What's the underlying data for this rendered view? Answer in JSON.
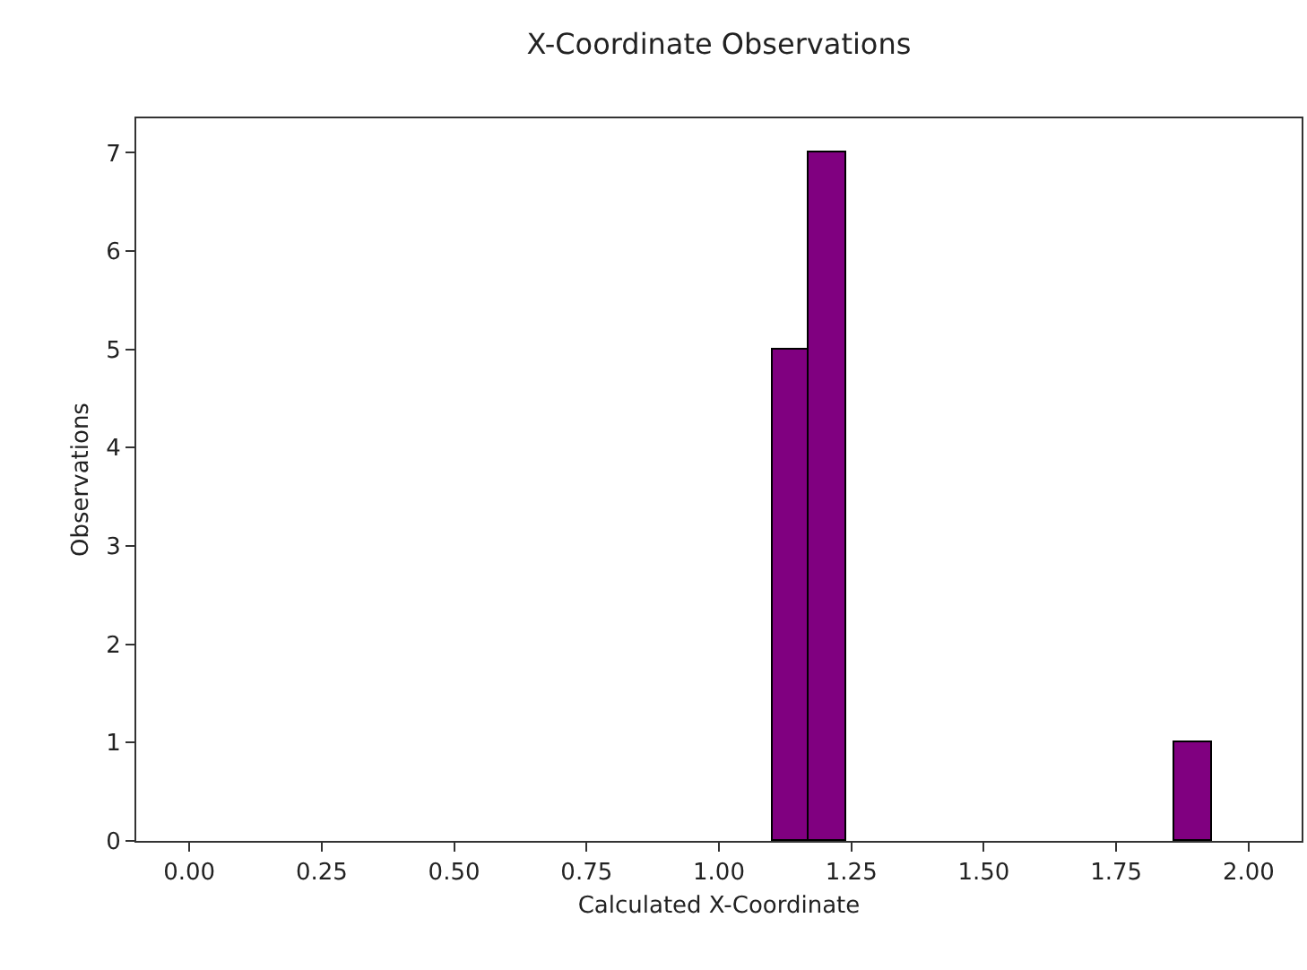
{
  "chart_data": {
    "type": "histogram",
    "title": "X-Coordinate Observations",
    "xlabel": "Calculated X-Coordinate",
    "ylabel": "Observations",
    "bins": [
      1.1,
      1.17,
      1.24,
      1.86,
      1.93
    ],
    "values": [
      5,
      7,
      0,
      1
    ],
    "color": "#800080",
    "xlim": [
      -0.1,
      2.1
    ],
    "xticks": [
      {
        "value": 0,
        "label": "0.00"
      },
      {
        "value": 0.25,
        "label": "0.25"
      },
      {
        "value": 0.5,
        "label": "0.50"
      },
      {
        "value": 0.75,
        "label": "0.75"
      },
      {
        "value": 1,
        "label": "1.00"
      },
      {
        "value": 1.25,
        "label": "1.25"
      },
      {
        "value": 1.5,
        "label": "1.50"
      },
      {
        "value": 1.75,
        "label": "1.75"
      },
      {
        "value": 2,
        "label": "2.00"
      }
    ],
    "ylim": [
      0,
      7.35
    ],
    "yticks": [
      0,
      1,
      2,
      3,
      4,
      5,
      6,
      7
    ],
    "grid": false
  }
}
